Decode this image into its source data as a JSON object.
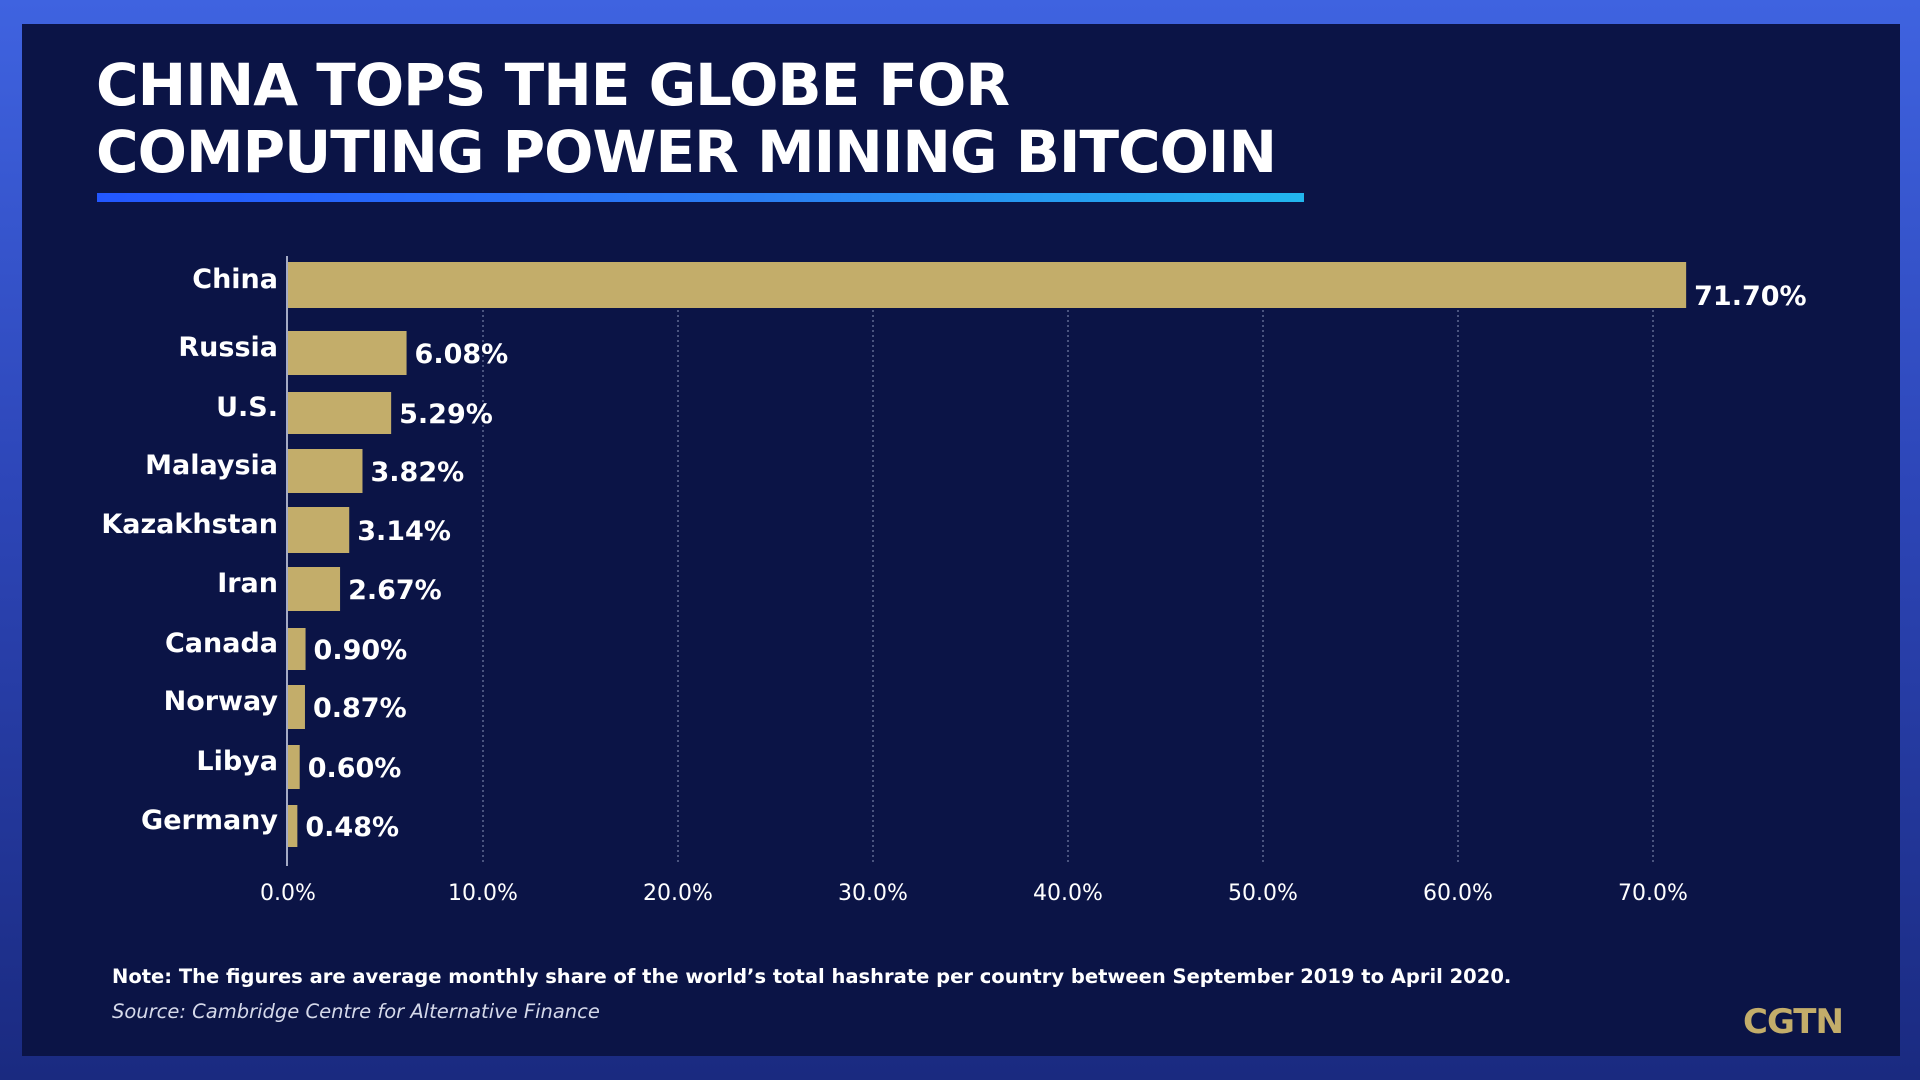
{
  "title_line1": "CHINA TOPS THE GLOBE FOR",
  "title_line2": "COMPUTING POWER MINING BITCOIN",
  "note": "Note: The figures are average monthly share of the world’s total hashrate per country between September 2019 to April 2020.",
  "source": "Source: Cambridge Centre for Alternative Finance",
  "logo": "CGTN",
  "colors": {
    "background": "#0b1446",
    "bar": "#c3ad6a",
    "title_underline": "#2a7df2"
  },
  "chart_data": {
    "type": "bar",
    "orientation": "horizontal",
    "categories": [
      "China",
      "Russia",
      "U.S.",
      "Malaysia",
      "Kazakhstan",
      "Iran",
      "Canada",
      "Norway",
      "Libya",
      "Germany"
    ],
    "values": [
      71.7,
      6.08,
      5.29,
      3.82,
      3.14,
      2.67,
      0.9,
      0.87,
      0.6,
      0.48
    ],
    "value_labels": [
      "71.70%",
      "6.08%",
      "5.29%",
      "3.82%",
      "3.14%",
      "2.67%",
      "0.90%",
      "0.87%",
      "0.60%",
      "0.48%"
    ],
    "xlim": [
      0,
      70
    ],
    "xticks": [
      0,
      10,
      20,
      30,
      40,
      50,
      60,
      70
    ],
    "xtick_labels": [
      "0.0%",
      "10.0%",
      "20.0%",
      "30.0%",
      "40.0%",
      "50.0%",
      "60.0%",
      "70.0%"
    ],
    "grid": "vertical dotted",
    "legend": "none"
  }
}
